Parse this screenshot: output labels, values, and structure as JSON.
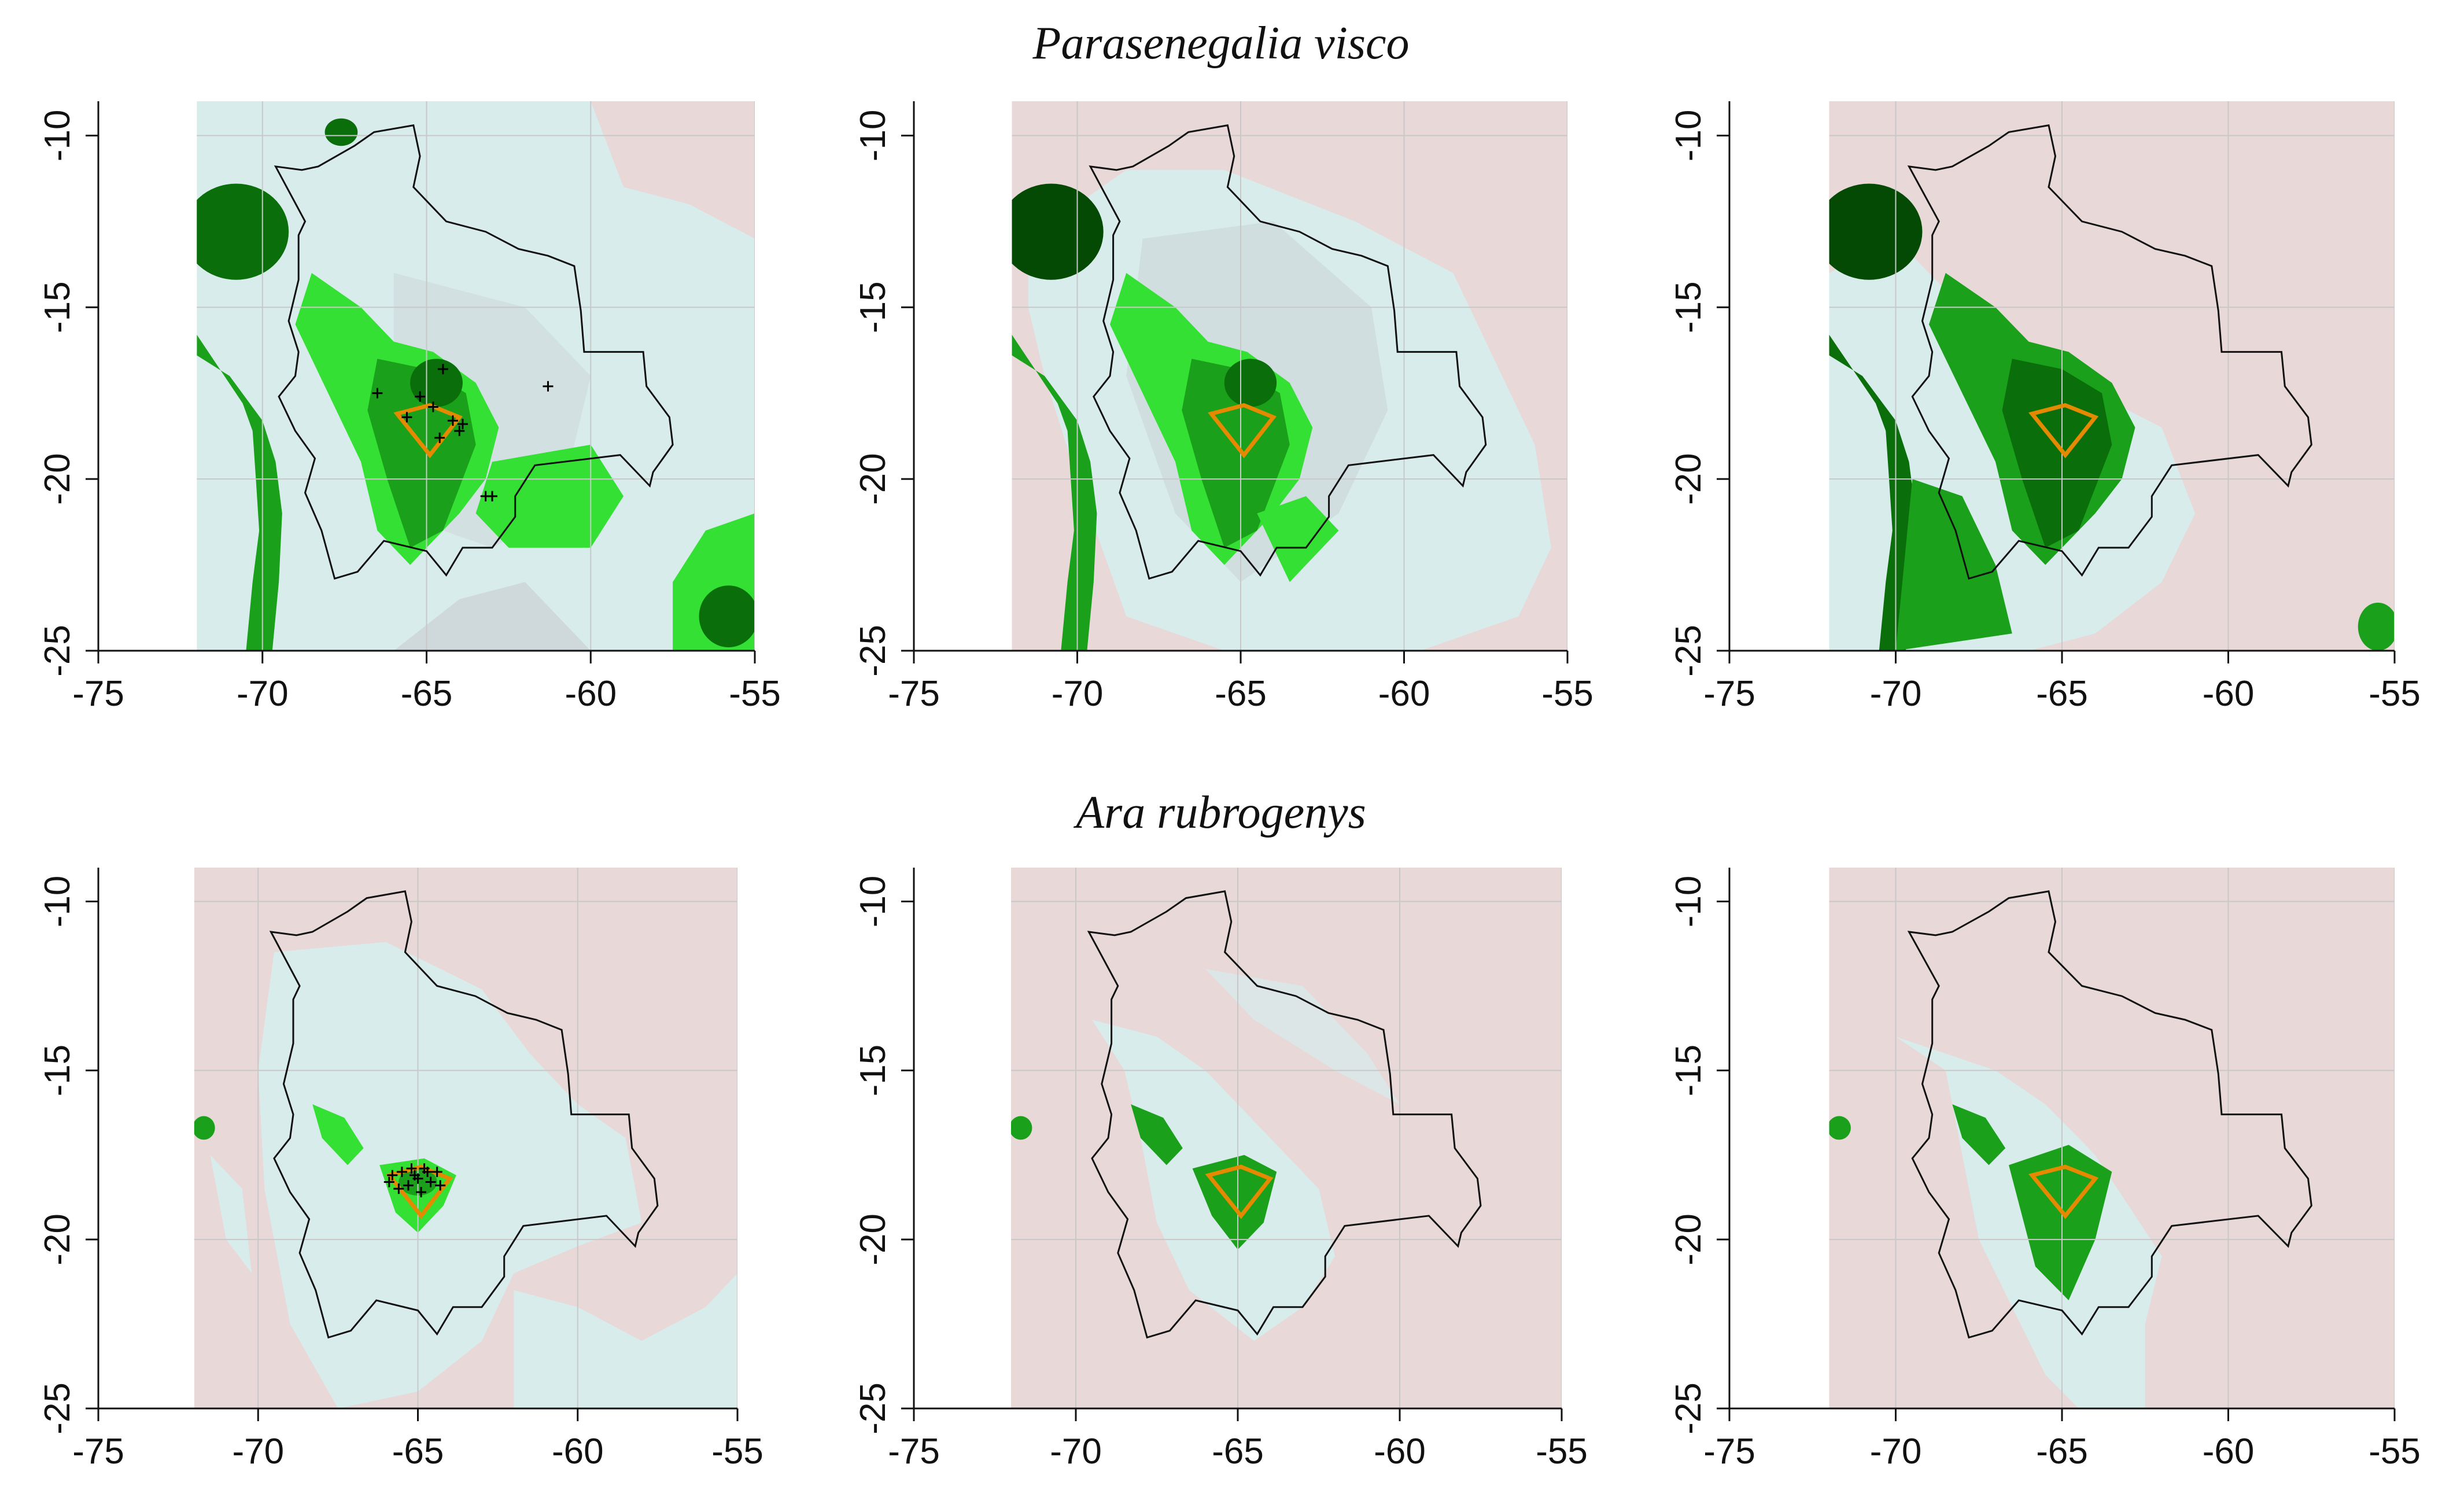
{
  "figure": {
    "rows": [
      {
        "title": "Parasenegalia visco",
        "panels": [
          {
            "style": "p1",
            "has_points": true,
            "points": [
              [
                -66.5,
                -17.5
              ],
              [
                -65.2,
                -17.6
              ],
              [
                -64.8,
                -17.9
              ],
              [
                -64.5,
                -16.8
              ],
              [
                -64.2,
                -18.3
              ],
              [
                -64.0,
                -18.6
              ],
              [
                -63.9,
                -18.4
              ],
              [
                -64.6,
                -18.8
              ],
              [
                -63.2,
                -20.5
              ],
              [
                -63.0,
                -20.5
              ],
              [
                -61.3,
                -17.3
              ],
              [
                -65.6,
                -18.2
              ]
            ]
          },
          {
            "style": "p2",
            "has_points": false,
            "points": []
          },
          {
            "style": "p3",
            "has_points": false,
            "points": []
          }
        ]
      },
      {
        "title": "Ara rubrogenys",
        "panels": [
          {
            "style": "a1",
            "has_points": true,
            "points": [
              [
                -65.8,
                -18.1
              ],
              [
                -65.5,
                -18.0
              ],
              [
                -65.2,
                -17.9
              ],
              [
                -65.0,
                -18.2
              ],
              [
                -64.8,
                -17.9
              ],
              [
                -64.6,
                -18.3
              ],
              [
                -64.4,
                -18.0
              ],
              [
                -65.3,
                -18.4
              ],
              [
                -64.9,
                -18.6
              ],
              [
                -65.6,
                -18.5
              ],
              [
                -64.7,
                -18.0
              ],
              [
                -65.1,
                -18.1
              ],
              [
                -64.3,
                -18.4
              ],
              [
                -65.9,
                -18.3
              ]
            ]
          },
          {
            "style": "a2",
            "has_points": false,
            "points": []
          },
          {
            "style": "a3",
            "has_points": false,
            "points": []
          }
        ]
      }
    ],
    "axes": {
      "xlim": [
        -75,
        -55
      ],
      "ylim": [
        -25,
        -9
      ],
      "x_ticks": [
        -75,
        -70,
        -65,
        -60,
        -55
      ],
      "y_ticks": [
        -25,
        -20,
        -15,
        -10
      ],
      "x_tick_labels": [
        "-75",
        "-70",
        "-65",
        "-60",
        "-55"
      ],
      "y_tick_labels": [
        "-25",
        "-20",
        "-15",
        "-10"
      ],
      "grid": true
    },
    "colors": {
      "unsuitable": "#e8d8d8",
      "suitable_low": "#d8ecec",
      "grey_zone": "#cfd8da",
      "green_light": "#33e033",
      "green_mid": "#1aa01a",
      "green_dark": "#0a6e0a",
      "green_darkest": "#044a04",
      "focal_area": "#e58a00",
      "border": "#111111",
      "grid": "#c8c8c8"
    },
    "overlay": {
      "country_outline": "bolivia-border",
      "focal_polygon": [
        [
          -65.9,
          -18.1
        ],
        [
          -64.9,
          -17.85
        ],
        [
          -64.0,
          -18.2
        ],
        [
          -64.9,
          -19.3
        ]
      ]
    }
  }
}
